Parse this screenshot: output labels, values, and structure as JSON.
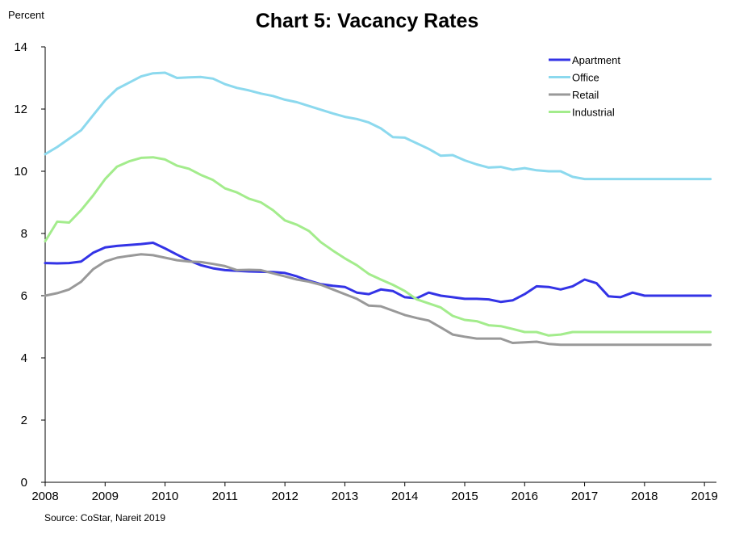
{
  "chart_data": {
    "type": "line",
    "title": "Chart 5: Vacancy Rates",
    "ylabel": "Percent",
    "source": "Source: CoStar, Nareit 2019",
    "ylim": [
      0,
      14
    ],
    "yticks": [
      0,
      2,
      4,
      6,
      8,
      10,
      12,
      14
    ],
    "xlim": [
      2008,
      2019.2
    ],
    "xticks": [
      2008,
      2009,
      2010,
      2011,
      2012,
      2013,
      2014,
      2015,
      2016,
      2017,
      2018,
      2019
    ],
    "grid": false,
    "legend_position": "top-right",
    "x": [
      2008.0,
      2008.2,
      2008.4,
      2008.6,
      2008.8,
      2009.0,
      2009.2,
      2009.4,
      2009.6,
      2009.8,
      2010.0,
      2010.2,
      2010.4,
      2010.6,
      2010.8,
      2011.0,
      2011.2,
      2011.4,
      2011.6,
      2011.8,
      2012.0,
      2012.2,
      2012.4,
      2012.6,
      2012.8,
      2013.0,
      2013.2,
      2013.4,
      2013.6,
      2013.8,
      2014.0,
      2014.2,
      2014.4,
      2014.6,
      2014.8,
      2015.0,
      2015.2,
      2015.4,
      2015.6,
      2015.8,
      2016.0,
      2016.2,
      2016.4,
      2016.6,
      2016.8,
      2017.0,
      2017.2,
      2017.4,
      2017.6,
      2017.8,
      2018.0,
      2018.2,
      2018.4,
      2018.6,
      2018.8,
      2019.0,
      2019.1
    ],
    "series": [
      {
        "name": "Apartment",
        "color": "#3333e6",
        "values": [
          7.05,
          7.04,
          7.05,
          7.1,
          7.38,
          7.55,
          7.6,
          7.63,
          7.66,
          7.7,
          7.52,
          7.32,
          7.13,
          6.98,
          6.88,
          6.82,
          6.8,
          6.78,
          6.77,
          6.76,
          6.73,
          6.62,
          6.48,
          6.37,
          6.32,
          6.28,
          6.1,
          6.05,
          6.2,
          6.15,
          5.95,
          5.92,
          6.1,
          6.0,
          5.95,
          5.9,
          5.9,
          5.88,
          5.8,
          5.85,
          6.05,
          6.3,
          6.28,
          6.2,
          6.3,
          6.52,
          6.4,
          5.98,
          5.95,
          6.1,
          6.0,
          6.0,
          6.0,
          6.0,
          6.0,
          6.0,
          6.0
        ]
      },
      {
        "name": "Office",
        "color": "#8cd9ee",
        "values": [
          10.55,
          10.78,
          11.05,
          11.32,
          11.8,
          12.28,
          12.65,
          12.85,
          13.05,
          13.15,
          13.17,
          13.0,
          13.02,
          13.03,
          12.98,
          12.8,
          12.68,
          12.6,
          12.5,
          12.42,
          12.3,
          12.22,
          12.1,
          11.98,
          11.86,
          11.75,
          11.68,
          11.57,
          11.38,
          11.1,
          11.08,
          10.9,
          10.72,
          10.5,
          10.52,
          10.35,
          10.22,
          10.12,
          10.14,
          10.05,
          10.1,
          10.03,
          10.0,
          10.0,
          9.82,
          9.75,
          9.75,
          9.75,
          9.75,
          9.75,
          9.75,
          9.75,
          9.75,
          9.75,
          9.75,
          9.75,
          9.75
        ]
      },
      {
        "name": "Retail",
        "color": "#999999",
        "values": [
          6.0,
          6.08,
          6.2,
          6.45,
          6.85,
          7.1,
          7.22,
          7.28,
          7.33,
          7.3,
          7.22,
          7.14,
          7.1,
          7.08,
          7.02,
          6.95,
          6.82,
          6.83,
          6.82,
          6.72,
          6.62,
          6.52,
          6.45,
          6.35,
          6.2,
          6.05,
          5.9,
          5.68,
          5.66,
          5.52,
          5.38,
          5.28,
          5.2,
          4.98,
          4.75,
          4.68,
          4.62,
          4.62,
          4.62,
          4.48,
          4.5,
          4.52,
          4.45,
          4.42,
          4.42,
          4.42,
          4.42,
          4.42,
          4.42,
          4.42,
          4.42,
          4.42,
          4.42,
          4.42,
          4.42,
          4.42,
          4.42
        ]
      },
      {
        "name": "Industrial",
        "color": "#a3ec8c",
        "values": [
          7.75,
          8.38,
          8.35,
          8.75,
          9.22,
          9.75,
          10.15,
          10.32,
          10.43,
          10.45,
          10.38,
          10.18,
          10.08,
          9.88,
          9.72,
          9.45,
          9.32,
          9.12,
          9.0,
          8.75,
          8.42,
          8.28,
          8.08,
          7.72,
          7.45,
          7.2,
          6.98,
          6.7,
          6.52,
          6.35,
          6.15,
          5.88,
          5.75,
          5.62,
          5.35,
          5.22,
          5.18,
          5.05,
          5.02,
          4.93,
          4.83,
          4.83,
          4.72,
          4.75,
          4.83,
          4.83,
          4.83,
          4.83,
          4.83,
          4.83,
          4.83,
          4.83,
          4.83,
          4.83,
          4.83,
          4.83,
          4.83
        ]
      }
    ]
  }
}
